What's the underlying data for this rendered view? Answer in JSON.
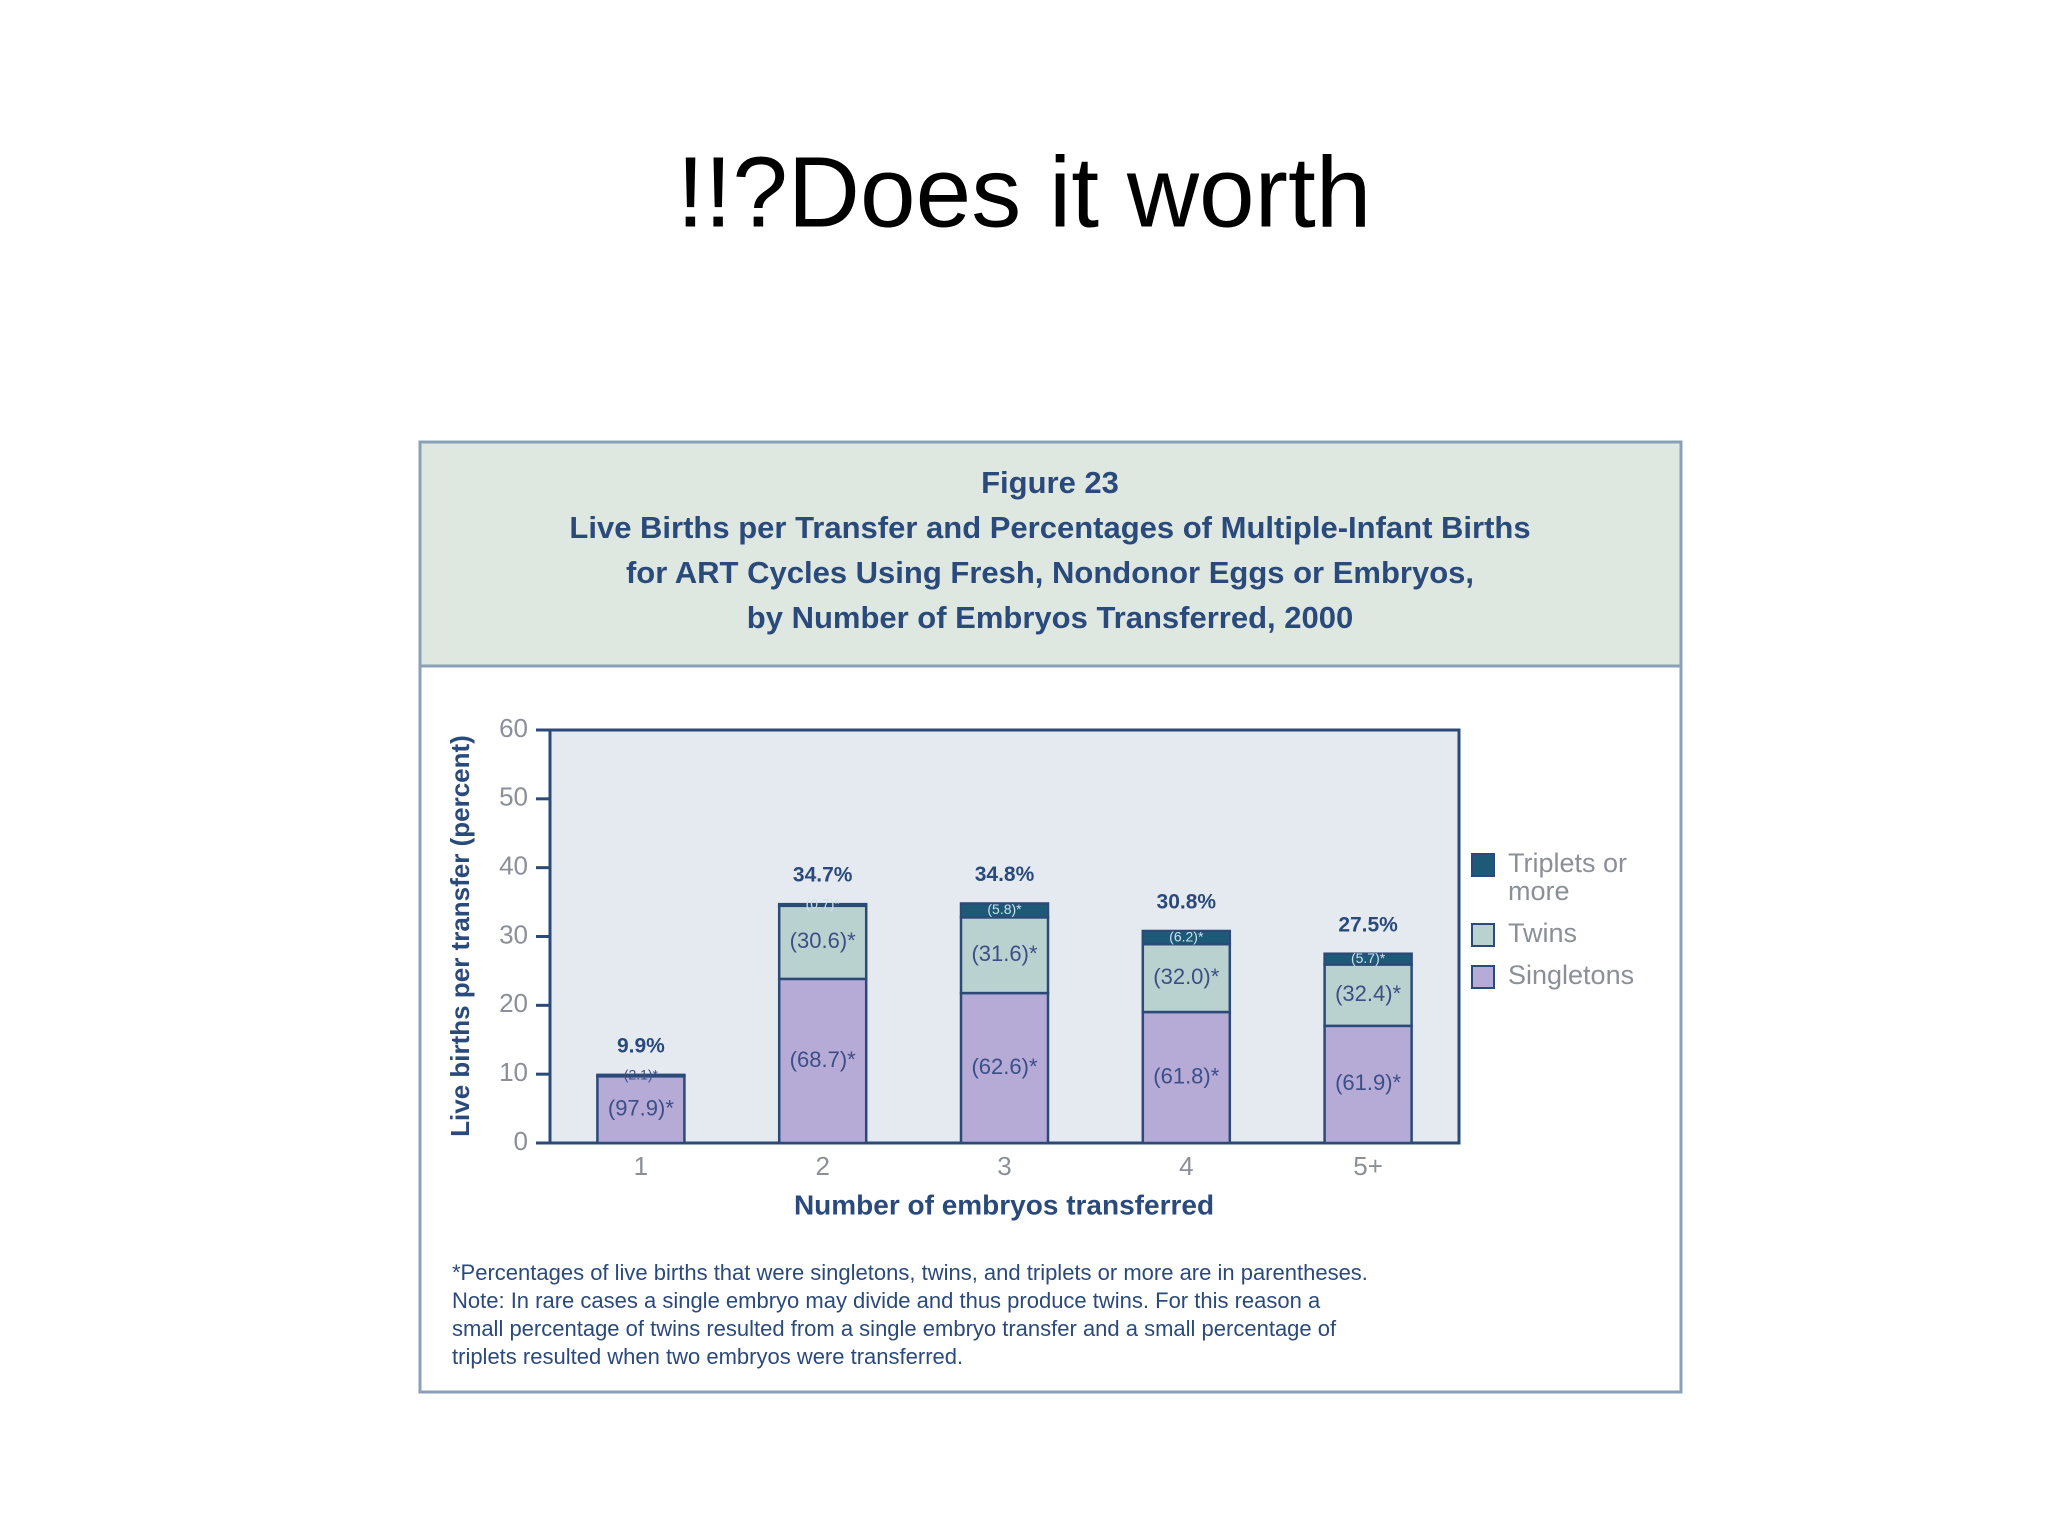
{
  "slide_title": "!!?Does it worth",
  "chart_data": {
    "type": "bar",
    "stacked": true,
    "figure_label": "Figure 23",
    "title_lines": [
      "Live Births per Transfer and Percentages of Multiple-Infant Births",
      "for ART Cycles Using Fresh, Nondonor Eggs or Embryos,",
      "by Number of Embryos Transferred, 2000"
    ],
    "x_label": "Number of embryos transferred",
    "y_label": "Live births per transfer (percent)",
    "categories": [
      "1",
      "2",
      "3",
      "4",
      "5+"
    ],
    "series": [
      {
        "name": "Singletons",
        "color": "#b6aad6",
        "values": [
          9.69,
          23.84,
          21.78,
          19.03,
          17.02
        ],
        "share_labels": [
          "(97.9)*",
          "(68.7)*",
          "(62.6)*",
          "(61.8)*",
          "(61.9)*"
        ]
      },
      {
        "name": "Twins",
        "color": "#b9d2cf",
        "values": [
          0.21,
          10.62,
          11.0,
          9.86,
          8.91
        ],
        "share_labels": [
          "(2.1)*",
          "(30.6)*",
          "(31.6)*",
          "(32.0)*",
          "(32.4)*"
        ]
      },
      {
        "name": "Triplets or more",
        "color": "#1d5a78",
        "values": [
          0,
          0.24,
          2.02,
          1.91,
          1.57
        ],
        "share_labels": [
          null,
          "(0.7)*",
          "(5.8)*",
          "(6.2)*",
          "(5.7)*"
        ]
      }
    ],
    "totals": [
      9.9,
      34.7,
      34.8,
      30.8,
      27.5
    ],
    "total_labels": [
      "9.9%",
      "34.7%",
      "34.8%",
      "30.8%",
      "27.5%"
    ],
    "ylim": [
      0,
      60
    ],
    "yticks": [
      0,
      10,
      20,
      30,
      40,
      50,
      60
    ],
    "legend": "right",
    "footnote_lines": [
      "*Percentages of live births that were singletons, twins, and triplets or more are in parentheses.",
      "Note: In rare cases a single embryo may divide and thus produce twins. For this reason a",
      "small percentage of twins resulted from a single embryo transfer and a small percentage of",
      "triplets resulted when two embryos were transferred."
    ]
  }
}
